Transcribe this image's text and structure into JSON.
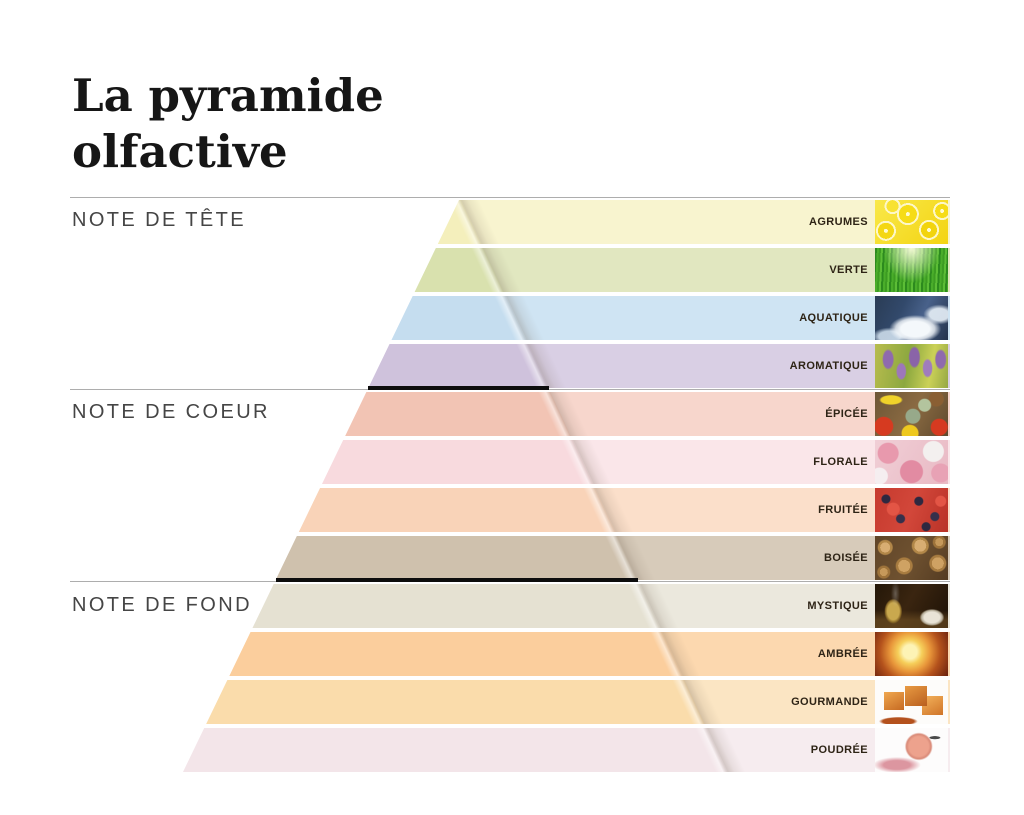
{
  "title": {
    "line1": "La pyramide",
    "line2": "olfactive"
  },
  "sections": [
    {
      "id": "tete",
      "label": "NOTE DE TÊTE",
      "band_indexes": [
        0,
        1,
        2,
        3
      ]
    },
    {
      "id": "coeur",
      "label": "NOTE DE COEUR",
      "band_indexes": [
        4,
        5,
        6,
        7
      ]
    },
    {
      "id": "fond",
      "label": "NOTE DE FOND",
      "band_indexes": [
        8,
        9,
        10,
        11
      ]
    }
  ],
  "bands": [
    {
      "key": "agrumes",
      "label": "AGRUMES",
      "section": "tete",
      "color_outer": "#f8f4cf",
      "color_inner": "#f4efbc",
      "thumbnail": "lemon-slices-photo",
      "thumb_colors": [
        "#f3d411",
        "#fdf7c8"
      ]
    },
    {
      "key": "verte",
      "label": "VERTE",
      "section": "tete",
      "color_outer": "#e1e7c0",
      "color_inner": "#d9e1ae",
      "thumbnail": "green-grass-photo",
      "thumb_colors": [
        "#3c9c22",
        "#5cbd36"
      ]
    },
    {
      "key": "aquatique",
      "label": "AQUATIQUE",
      "section": "tete",
      "color_outer": "#cfe4f3",
      "color_inner": "#c5ddef",
      "thumbnail": "ocean-wave-photo",
      "thumb_colors": [
        "#2a3c55",
        "#f4f8fb"
      ]
    },
    {
      "key": "aromatique",
      "label": "AROMATIQUE",
      "section": "tete",
      "color_outer": "#d9cfe4",
      "color_inner": "#cfc2dc",
      "thumbnail": "lavender-field-photo",
      "thumb_colors": [
        "#8f6aae",
        "#96a844"
      ]
    },
    {
      "key": "epicee",
      "label": "ÉPICÉE",
      "section": "coeur",
      "color_outer": "#f7d6cc",
      "color_inner": "#f2c4b4",
      "thumbnail": "spices-photo",
      "thumb_colors": [
        "#d63a20",
        "#eec81e",
        "#8a6a42"
      ]
    },
    {
      "key": "florale",
      "label": "FLORALE",
      "section": "coeur",
      "color_outer": "#fae6e9",
      "color_inner": "#f8dade",
      "thumbnail": "roses-photo",
      "thumb_colors": [
        "#e899ad",
        "#f3f0ef"
      ]
    },
    {
      "key": "fruitee",
      "label": "FRUITÉE",
      "section": "coeur",
      "color_outer": "#fbdfca",
      "color_inner": "#f9d3b8",
      "thumbnail": "red-berries-photo",
      "thumb_colors": [
        "#c63a2e",
        "#2e2840"
      ]
    },
    {
      "key": "boisee",
      "label": "BOISÉE",
      "section": "coeur",
      "color_outer": "#d7cbba",
      "color_inner": "#cfc1ad",
      "thumbnail": "wood-logs-photo",
      "thumb_colors": [
        "#cfa263",
        "#604528"
      ]
    },
    {
      "key": "mystique",
      "label": "MYSTIQUE",
      "section": "fond",
      "color_outer": "#ebe8dd",
      "color_inner": "#e5e1d2",
      "thumbnail": "incense-photo",
      "thumb_colors": [
        "#241708",
        "#c9a84e",
        "#e9e3d6"
      ]
    },
    {
      "key": "ambree",
      "label": "AMBRÉE",
      "section": "fond",
      "color_outer": "#fcd8af",
      "color_inner": "#fbce9d",
      "thumbnail": "amber-glow-photo",
      "thumb_colors": [
        "#fdf3b5",
        "#b4521c"
      ]
    },
    {
      "key": "gourmande",
      "label": "GOURMANDE",
      "section": "fond",
      "color_outer": "#fbe5c3",
      "color_inner": "#fadcab",
      "thumbnail": "caramel-candy-photo",
      "thumb_colors": [
        "#e89a42",
        "#fdfcfa"
      ]
    },
    {
      "key": "poudree",
      "label": "POUDRÉE",
      "section": "fond",
      "color_outer": "#f6ecef",
      "color_inner": "#f3e5e9",
      "thumbnail": "powder-puff-photo",
      "thumb_colors": [
        "#eda28d",
        "#dc96a0"
      ]
    }
  ],
  "colors": {
    "divider_black": "#0d0d0d",
    "rule_gray": "#adadad",
    "band_label_text": "#2e2416",
    "section_label_text": "#454545",
    "title_text": "#161616",
    "background": "#ffffff"
  }
}
